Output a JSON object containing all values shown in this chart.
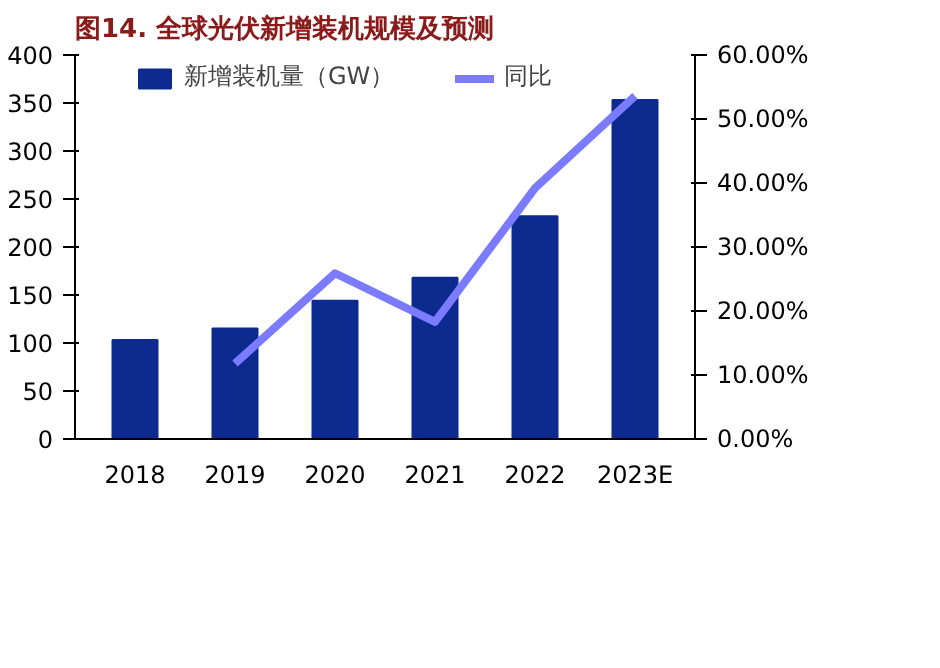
{
  "chart_data": {
    "type": "bar",
    "title": "图14. 全球光伏新增装机规模及预测",
    "categories": [
      "2018",
      "2019",
      "2020",
      "2021",
      "2022",
      "2023E"
    ],
    "series": [
      {
        "name": "新增装机量（GW）",
        "color": "#0d2a8f",
        "values": [
          103,
          115,
          144,
          168,
          232,
          353
        ]
      },
      {
        "name": "同比",
        "type": "line",
        "axis": "y2",
        "color": "#7b7bff",
        "values": [
          null,
          11.8,
          25.9,
          18.3,
          39.2,
          53.6
        ]
      }
    ],
    "ylim": [
      0,
      400
    ],
    "yticks": [
      0,
      50,
      100,
      150,
      200,
      250,
      300,
      350,
      400
    ],
    "y2lim": [
      0,
      60
    ],
    "y2ticks": [
      {
        "value": 0,
        "label": "0.00%"
      },
      {
        "value": 10,
        "label": "10.00%"
      },
      {
        "value": 20,
        "label": "20.00%"
      },
      {
        "value": 30,
        "label": "30.00%"
      },
      {
        "value": 40,
        "label": "40.00%"
      },
      {
        "value": 50,
        "label": "50.00%"
      },
      {
        "value": 60,
        "label": "60.00%"
      }
    ],
    "grid": false,
    "legend": "top",
    "marker": "none",
    "line_style": "solid"
  }
}
